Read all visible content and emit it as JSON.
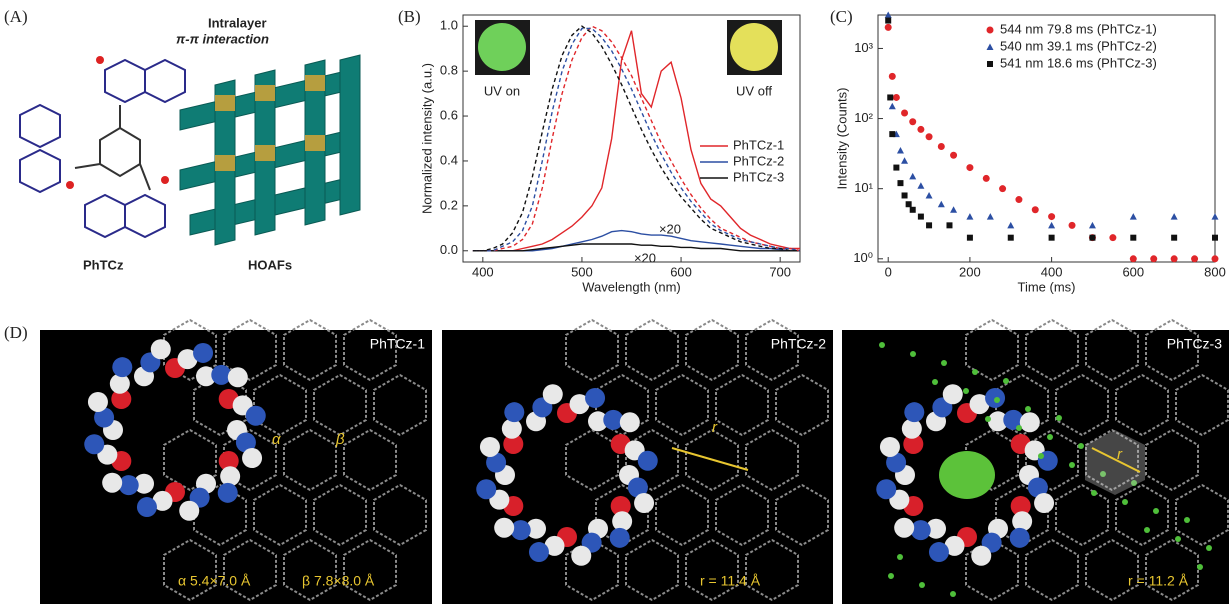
{
  "panel_labels": [
    "(A)",
    "(B)",
    "(C)",
    "(D)"
  ],
  "panel_a": {
    "molecule_label": "PhTCz",
    "framework_label": "HOAFs",
    "interaction_label": [
      "Intralayer",
      "π-π interaction"
    ]
  },
  "chart_data": [
    {
      "type": "line",
      "xlabel": "Wavelength (nm)",
      "ylabel": "Normalized intensity (a.u.)",
      "xlim": [
        380,
        720
      ],
      "ylim": [
        -0.05,
        1.05
      ],
      "xticks": [
        400,
        500,
        600,
        700
      ],
      "yticks": [
        {
          "value": 0,
          "label": "0.0"
        },
        0.2,
        0.4,
        0.6,
        0.8,
        {
          "value": 1,
          "label": "1.0"
        }
      ],
      "legend": "right",
      "annotations": [
        "×20",
        "×20"
      ],
      "inset_labels": [
        "UV on",
        "UV off"
      ],
      "x": [
        390,
        400,
        410,
        420,
        430,
        440,
        450,
        460,
        470,
        480,
        490,
        500,
        510,
        520,
        530,
        540,
        550,
        560,
        570,
        580,
        590,
        600,
        610,
        620,
        630,
        640,
        650,
        660,
        670,
        680,
        690,
        700,
        710,
        720
      ],
      "series": [
        {
          "name": "PhTCz-1",
          "color": "#e0262a",
          "style": "solid",
          "values": [
            0,
            0,
            0,
            0,
            0,
            0.01,
            0.02,
            0.03,
            0.05,
            0.08,
            0.11,
            0.15,
            0.2,
            0.28,
            0.5,
            0.85,
            0.98,
            0.7,
            0.64,
            0.8,
            0.84,
            0.68,
            0.45,
            0.3,
            0.23,
            0.2,
            0.15,
            0.1,
            0.07,
            0.05,
            0.03,
            0.02,
            0.01,
            0.01
          ]
        },
        {
          "name": "PhTCz-2",
          "color": "#2c4fa3",
          "style": "solid",
          "values": [
            0,
            0,
            0,
            0,
            0,
            0,
            0,
            0.005,
            0.01,
            0.02,
            0.03,
            0.04,
            0.05,
            0.065,
            0.085,
            0.09,
            0.085,
            0.075,
            0.07,
            0.07,
            0.065,
            0.055,
            0.045,
            0.04,
            0.035,
            0.03,
            0.025,
            0.02,
            0.015,
            0.01,
            0.01,
            0.005,
            0,
            0
          ]
        },
        {
          "name": "PhTCz-3",
          "color": "#111111",
          "style": "solid",
          "values": [
            0,
            0,
            0,
            0,
            0,
            0,
            0.005,
            0.01,
            0.015,
            0.02,
            0.025,
            0.03,
            0.03,
            0.03,
            0.03,
            0.03,
            0.03,
            0.025,
            0.025,
            0.02,
            0.02,
            0.015,
            0.015,
            0.01,
            0.01,
            0.01,
            0.005,
            0,
            0,
            0,
            0,
            0,
            0,
            0
          ]
        },
        {
          "color": "#e0262a",
          "style": "dashed",
          "values": [
            0,
            0,
            0,
            0.01,
            0.02,
            0.05,
            0.12,
            0.28,
            0.5,
            0.7,
            0.85,
            0.95,
            1.0,
            0.98,
            0.93,
            0.86,
            0.78,
            0.68,
            0.58,
            0.48,
            0.4,
            0.32,
            0.25,
            0.19,
            0.14,
            0.1,
            0.08,
            0.06,
            0.04,
            0.03,
            0.02,
            0.01,
            0.01,
            0
          ]
        },
        {
          "color": "#2c4fa3",
          "style": "dashed",
          "values": [
            0,
            0,
            0,
            0.02,
            0.04,
            0.09,
            0.2,
            0.4,
            0.62,
            0.8,
            0.92,
            0.99,
            0.99,
            0.95,
            0.89,
            0.81,
            0.72,
            0.62,
            0.52,
            0.43,
            0.35,
            0.28,
            0.22,
            0.17,
            0.12,
            0.09,
            0.07,
            0.05,
            0.04,
            0.03,
            0.02,
            0.01,
            0.01,
            0
          ]
        },
        {
          "color": "#111111",
          "style": "dashed",
          "values": [
            0,
            0,
            0.01,
            0.03,
            0.08,
            0.17,
            0.33,
            0.53,
            0.72,
            0.87,
            0.96,
            1.0,
            0.97,
            0.91,
            0.83,
            0.74,
            0.64,
            0.54,
            0.45,
            0.37,
            0.3,
            0.24,
            0.19,
            0.14,
            0.1,
            0.08,
            0.06,
            0.04,
            0.03,
            0.02,
            0.01,
            0.01,
            0,
            0
          ]
        }
      ]
    },
    {
      "type": "scatter",
      "log_y": true,
      "xlabel": "Time (ms)",
      "ylabel": "Intensity (Counts)",
      "xlim": [
        -25,
        800
      ],
      "ylim": [
        0.9,
        3000
      ],
      "xticks": [
        0,
        200,
        400,
        600,
        800
      ],
      "yticks": [
        {
          "value": 1,
          "label": "10⁰"
        },
        {
          "value": 10,
          "label": "10¹"
        },
        {
          "value": 100,
          "label": "10²"
        },
        {
          "value": 1000,
          "label": "10³"
        }
      ],
      "legend": "upper right",
      "series": [
        {
          "name": "544 nm  79.8 ms  (PhTCz-1)",
          "color": "#e0262a",
          "marker": "circle",
          "x": [
            0,
            10,
            20,
            40,
            60,
            80,
            100,
            130,
            160,
            200,
            240,
            280,
            320,
            360,
            400,
            450,
            500,
            550,
            600,
            650,
            700,
            750,
            800
          ],
          "values": [
            2000,
            400,
            200,
            120,
            90,
            70,
            55,
            40,
            30,
            20,
            14,
            10,
            7,
            5,
            4,
            3,
            2,
            2,
            1,
            1,
            1,
            1,
            1
          ]
        },
        {
          "name": "540 nm  39.1 ms  (PhTCz-2)",
          "color": "#2c4fa3",
          "marker": "triangle",
          "x": [
            0,
            10,
            20,
            30,
            40,
            60,
            80,
            100,
            130,
            160,
            200,
            250,
            300,
            400,
            500,
            600,
            700,
            800
          ],
          "values": [
            3000,
            150,
            60,
            35,
            25,
            15,
            11,
            8,
            6,
            5,
            4,
            4,
            3,
            3,
            3,
            4,
            4,
            4
          ]
        },
        {
          "name": "541 nm  18.6 ms  (PhTCz-3)",
          "color": "#111111",
          "marker": "square",
          "x": [
            0,
            5,
            10,
            20,
            30,
            40,
            50,
            60,
            80,
            100,
            150,
            200,
            300,
            400,
            500,
            600,
            700,
            800
          ],
          "values": [
            2500,
            200,
            60,
            20,
            12,
            8,
            6,
            5,
            4,
            3,
            3,
            2,
            2,
            2,
            2,
            2,
            2,
            2
          ]
        }
      ]
    }
  ],
  "panel_d": [
    {
      "title": "PhTCz-1",
      "annotations": [
        "α",
        "β",
        "α 5.4×7.0 Å",
        "β 7.8×8.0 Å"
      ]
    },
    {
      "title": "PhTCz-2",
      "annotations": [
        "r",
        "r = 11.4 Å"
      ]
    },
    {
      "title": "PhTCz-3",
      "annotations": [
        "r",
        "r = 11.2 Å"
      ]
    }
  ]
}
